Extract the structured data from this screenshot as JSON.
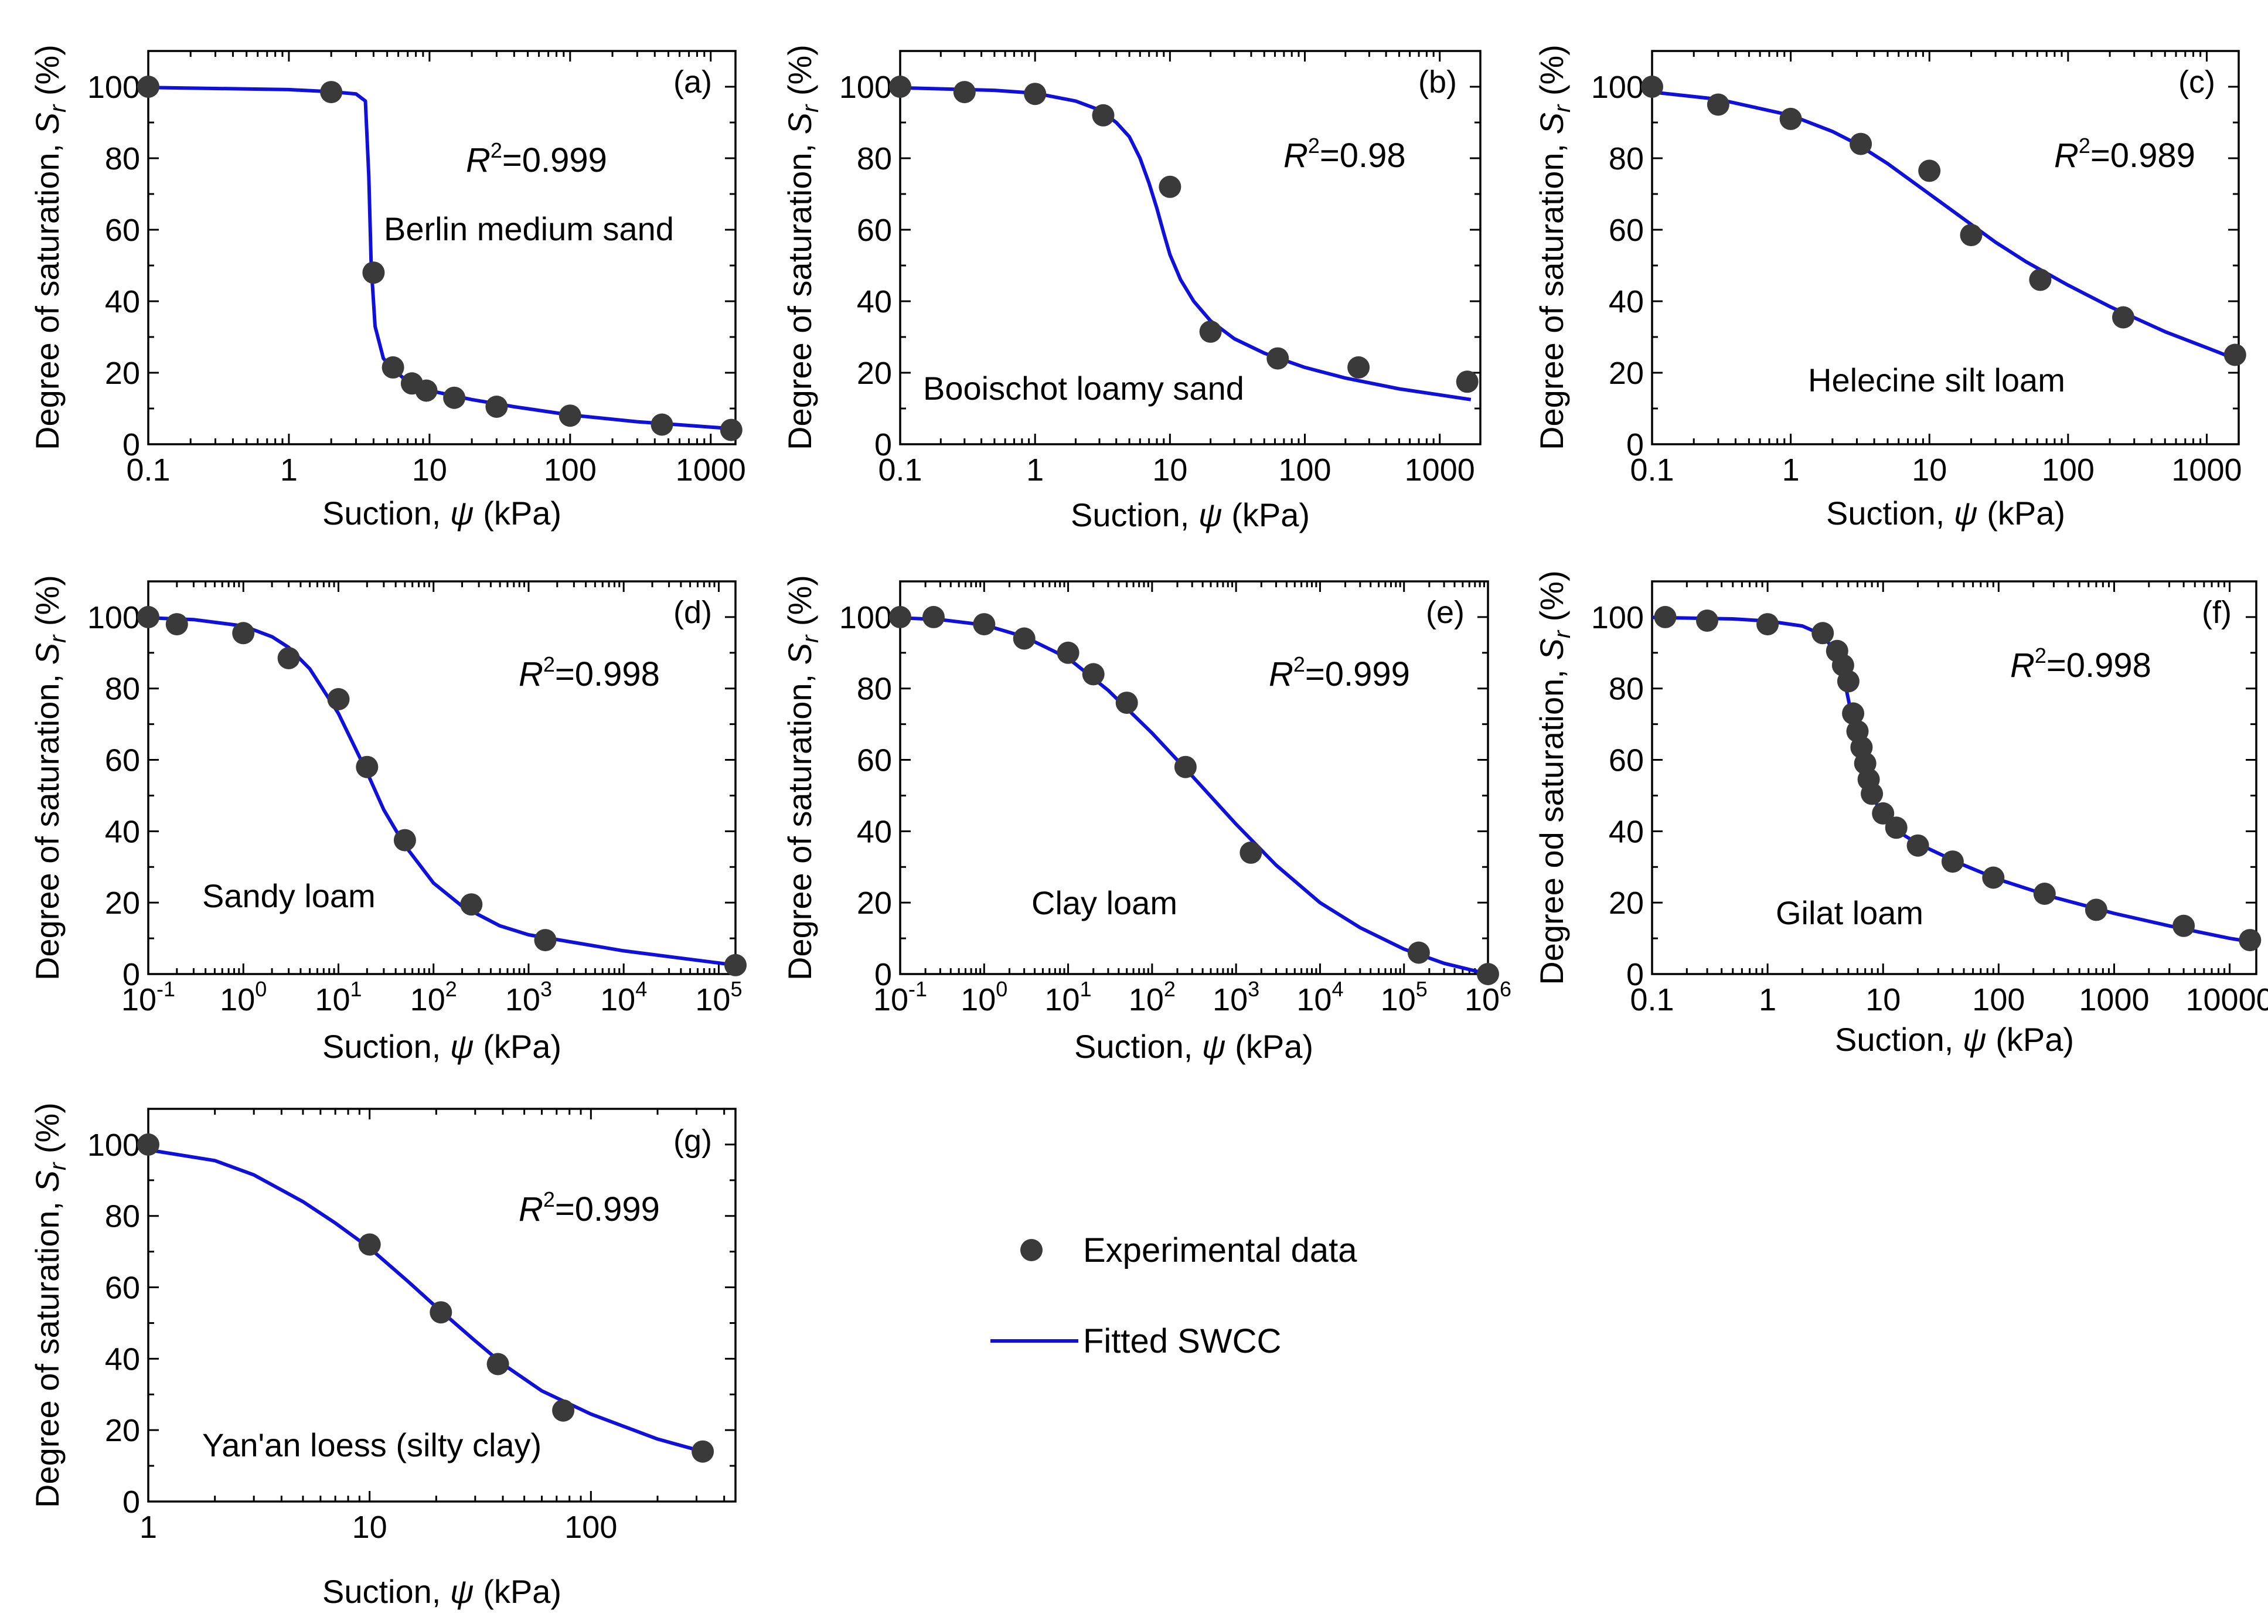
{
  "colors": {
    "point": "#3a3a3a",
    "curve": "#1010dd",
    "axis": "#000000"
  },
  "legend": {
    "experimental": "Experimental data",
    "fitted": "Fitted SWCC"
  },
  "chart_data": [
    {
      "id": "a",
      "type": "scatter+line",
      "panel_label": "(a)",
      "soil": "Berlin medium sand",
      "r2": "=0.999",
      "xlabel": "Suction, ψ (kPa)",
      "ylabel": "Degree of saturation, Sr (%)",
      "xscale": "log",
      "xlim": [
        0.1,
        1500
      ],
      "ylim": [
        0,
        110
      ],
      "xticks": [
        0.1,
        1,
        10,
        100,
        1000
      ],
      "xticklabels": [
        "0.1",
        "1",
        "10",
        "100",
        "1000"
      ],
      "yticks": [
        0,
        20,
        40,
        60,
        80,
        100
      ],
      "points": [
        [
          0.1,
          100
        ],
        [
          2,
          98.5
        ],
        [
          4,
          48
        ],
        [
          5.5,
          21.5
        ],
        [
          7.5,
          17
        ],
        [
          9.5,
          15
        ],
        [
          15,
          13
        ],
        [
          30,
          10.5
        ],
        [
          100,
          8
        ],
        [
          450,
          5.5
        ],
        [
          1400,
          4
        ]
      ],
      "curve": [
        [
          0.1,
          99.8
        ],
        [
          1,
          99.2
        ],
        [
          2,
          98.6
        ],
        [
          3,
          98
        ],
        [
          3.5,
          96
        ],
        [
          3.7,
          75
        ],
        [
          3.85,
          50
        ],
        [
          4.1,
          33
        ],
        [
          4.7,
          24
        ],
        [
          5.5,
          21
        ],
        [
          7,
          17.5
        ],
        [
          10,
          15
        ],
        [
          20,
          12.5
        ],
        [
          40,
          10.5
        ],
        [
          100,
          8.2
        ],
        [
          300,
          6.3
        ],
        [
          1000,
          4.8
        ],
        [
          1500,
          4.3
        ]
      ]
    },
    {
      "id": "b",
      "type": "scatter+line",
      "panel_label": "(b)",
      "soil": "Booischot loamy sand",
      "r2": "=0.98",
      "xlabel": "Suction, ψ (kPa)",
      "ylabel": "Degree of saturation, Sr (%)",
      "xscale": "log",
      "xlim": [
        0.1,
        2000
      ],
      "ylim": [
        0,
        110
      ],
      "xticks": [
        0.1,
        1,
        10,
        100,
        1000
      ],
      "xticklabels": [
        "0.1",
        "1",
        "10",
        "100",
        "1000"
      ],
      "yticks": [
        0,
        20,
        40,
        60,
        80,
        100
      ],
      "points": [
        [
          0.1,
          100
        ],
        [
          0.3,
          98.5
        ],
        [
          1,
          98
        ],
        [
          3.2,
          92
        ],
        [
          10,
          72
        ],
        [
          20,
          31.5
        ],
        [
          63,
          24
        ],
        [
          250,
          21.5
        ],
        [
          1600,
          17.5
        ]
      ],
      "curve": [
        [
          0.1,
          99.7
        ],
        [
          0.5,
          99
        ],
        [
          1,
          98.2
        ],
        [
          2,
          96
        ],
        [
          3,
          93.5
        ],
        [
          4,
          90
        ],
        [
          5,
          86
        ],
        [
          6,
          80
        ],
        [
          7,
          73
        ],
        [
          8,
          66
        ],
        [
          9,
          59
        ],
        [
          10,
          53
        ],
        [
          12,
          46
        ],
        [
          15,
          40
        ],
        [
          20,
          34.5
        ],
        [
          30,
          29.5
        ],
        [
          50,
          25.5
        ],
        [
          100,
          21.5
        ],
        [
          200,
          18.5
        ],
        [
          500,
          15.5
        ],
        [
          1000,
          13.8
        ],
        [
          1700,
          12.5
        ]
      ]
    },
    {
      "id": "c",
      "type": "scatter+line",
      "panel_label": "(c)",
      "soil": "Helecine silt loam",
      "r2": "=0.989",
      "xlabel": "Suction, ψ (kPa)",
      "ylabel": "Degree of saturation, Sr (%)",
      "xscale": "log",
      "xlim": [
        0.1,
        1700
      ],
      "ylim": [
        0,
        110
      ],
      "xticks": [
        0.1,
        1,
        10,
        100,
        1000
      ],
      "xticklabels": [
        "0.1",
        "1",
        "10",
        "100",
        "1000"
      ],
      "yticks": [
        0,
        20,
        40,
        60,
        80,
        100
      ],
      "points": [
        [
          0.1,
          100
        ],
        [
          0.3,
          95
        ],
        [
          1,
          91
        ],
        [
          3.2,
          84
        ],
        [
          10,
          76.5
        ],
        [
          20,
          58.5
        ],
        [
          63,
          46
        ],
        [
          250,
          35.5
        ],
        [
          1600,
          25
        ]
      ],
      "curve": [
        [
          0.1,
          98.5
        ],
        [
          0.3,
          96.5
        ],
        [
          1,
          92
        ],
        [
          2,
          87.5
        ],
        [
          3,
          84
        ],
        [
          5,
          78.5
        ],
        [
          10,
          70
        ],
        [
          20,
          61.5
        ],
        [
          30,
          56.5
        ],
        [
          50,
          51
        ],
        [
          100,
          44.5
        ],
        [
          200,
          38.5
        ],
        [
          500,
          31.5
        ],
        [
          1000,
          27
        ],
        [
          1700,
          23.5
        ]
      ]
    },
    {
      "id": "d",
      "type": "scatter+line",
      "panel_label": "(d)",
      "soil": "Sandy loam",
      "r2": "=0.998",
      "xlabel": "Suction, ψ (kPa)",
      "ylabel": "Degree of saturation, Sr (%)",
      "xscale": "log",
      "xlim": [
        0.1,
        150000
      ],
      "ylim": [
        0,
        110
      ],
      "xticks": [
        0.1,
        1,
        10,
        100,
        1000,
        10000,
        100000
      ],
      "xtick_base": "10",
      "xtick_exponents": [
        "-1",
        "0",
        "1",
        "2",
        "3",
        "4",
        "5"
      ],
      "yticks": [
        0,
        20,
        40,
        60,
        80,
        100
      ],
      "points": [
        [
          0.1,
          100
        ],
        [
          0.2,
          98
        ],
        [
          1,
          95.5
        ],
        [
          3,
          88.5
        ],
        [
          10,
          77
        ],
        [
          20,
          58
        ],
        [
          50,
          37.5
        ],
        [
          250,
          19.5
        ],
        [
          1500,
          9.5
        ],
        [
          150000,
          2.5
        ]
      ],
      "curve": [
        [
          0.1,
          99.8
        ],
        [
          0.3,
          99.3
        ],
        [
          1,
          97.5
        ],
        [
          2,
          94.5
        ],
        [
          3,
          91.5
        ],
        [
          5,
          85.5
        ],
        [
          10,
          73
        ],
        [
          20,
          56.5
        ],
        [
          30,
          46
        ],
        [
          50,
          36
        ],
        [
          100,
          25.5
        ],
        [
          200,
          19
        ],
        [
          500,
          13.5
        ],
        [
          1000,
          11
        ],
        [
          10000,
          6.5
        ],
        [
          150000,
          2.5
        ]
      ]
    },
    {
      "id": "e",
      "type": "scatter+line",
      "panel_label": "(e)",
      "soil": "Clay loam",
      "r2": "=0.999",
      "xlabel": "Suction, ψ (kPa)",
      "ylabel": "Degree of saturation, Sr (%)",
      "xscale": "log",
      "xlim": [
        0.1,
        1000000
      ],
      "ylim": [
        0,
        110
      ],
      "xticks": [
        0.1,
        1,
        10,
        100,
        1000,
        10000,
        100000,
        1000000
      ],
      "xtick_base": "10",
      "xtick_exponents": [
        "-1",
        "0",
        "1",
        "2",
        "3",
        "4",
        "5",
        "6"
      ],
      "yticks": [
        0,
        20,
        40,
        60,
        80,
        100
      ],
      "points": [
        [
          0.1,
          100
        ],
        [
          0.25,
          100
        ],
        [
          1,
          98
        ],
        [
          3,
          94
        ],
        [
          10,
          90
        ],
        [
          20,
          84
        ],
        [
          50,
          76
        ],
        [
          250,
          58
        ],
        [
          1500,
          34
        ],
        [
          150000,
          6
        ],
        [
          1000000,
          0
        ]
      ],
      "curve": [
        [
          0.1,
          99.8
        ],
        [
          0.3,
          99.3
        ],
        [
          1,
          97.8
        ],
        [
          3,
          94.5
        ],
        [
          10,
          88.5
        ],
        [
          30,
          79.5
        ],
        [
          100,
          67.5
        ],
        [
          300,
          55.5
        ],
        [
          1000,
          42
        ],
        [
          3000,
          30.5
        ],
        [
          10000,
          20
        ],
        [
          30000,
          13
        ],
        [
          100000,
          7
        ],
        [
          300000,
          3
        ],
        [
          1000000,
          0
        ]
      ]
    },
    {
      "id": "f",
      "type": "scatter+line",
      "panel_label": "(f)",
      "soil": "Gilat loam",
      "r2": "=0.998",
      "xlabel": "Suction, ψ (kPa)",
      "ylabel": "Degree od saturation, Sr (%)",
      "xscale": "log",
      "xlim": [
        0.1,
        17000
      ],
      "ylim": [
        0,
        110
      ],
      "xticks": [
        0.1,
        1,
        10,
        100,
        1000,
        10000
      ],
      "xticklabels": [
        "0.1",
        "1",
        "10",
        "100",
        "1000",
        "10000"
      ],
      "yticks": [
        0,
        20,
        40,
        60,
        80,
        100
      ],
      "points": [
        [
          0.13,
          100
        ],
        [
          0.3,
          99
        ],
        [
          1,
          98
        ],
        [
          3,
          95.5
        ],
        [
          4,
          90.5
        ],
        [
          4.5,
          86.5
        ],
        [
          5,
          82
        ],
        [
          5.5,
          73
        ],
        [
          6,
          68
        ],
        [
          6.5,
          63.5
        ],
        [
          7,
          59
        ],
        [
          7.5,
          54.5
        ],
        [
          8,
          50.5
        ],
        [
          10,
          45
        ],
        [
          13,
          41
        ],
        [
          20,
          36
        ],
        [
          40,
          31.5
        ],
        [
          90,
          27
        ],
        [
          250,
          22.5
        ],
        [
          700,
          18
        ],
        [
          4000,
          13.5
        ],
        [
          15000,
          9.5
        ]
      ],
      "curve": [
        [
          0.1,
          99.9
        ],
        [
          0.5,
          99.5
        ],
        [
          1,
          98.9
        ],
        [
          2,
          97.5
        ],
        [
          3,
          95
        ],
        [
          4,
          89.5
        ],
        [
          4.5,
          84
        ],
        [
          5,
          77
        ],
        [
          5.5,
          70
        ],
        [
          6,
          63.5
        ],
        [
          7,
          55
        ],
        [
          8,
          50
        ],
        [
          10,
          44.5
        ],
        [
          15,
          39
        ],
        [
          20,
          36.5
        ],
        [
          50,
          30.5
        ],
        [
          100,
          26.5
        ],
        [
          300,
          21.5
        ],
        [
          1000,
          17
        ],
        [
          3000,
          13.5
        ],
        [
          10000,
          10
        ],
        [
          17000,
          8.8
        ]
      ]
    },
    {
      "id": "g",
      "type": "scatter+line",
      "panel_label": "(g)",
      "soil": "Yan'an loess (silty clay)",
      "r2": "=0.999",
      "xlabel": "Suction, ψ (kPa)",
      "ylabel": "Degree of saturation, Sr (%)",
      "xscale": "log",
      "xlim": [
        1,
        450
      ],
      "ylim": [
        0,
        110
      ],
      "xticks": [
        1,
        10,
        100
      ],
      "xticklabels": [
        "1",
        "10",
        "100"
      ],
      "yticks": [
        0,
        20,
        40,
        60,
        80,
        100
      ],
      "points": [
        [
          1,
          100
        ],
        [
          10,
          72
        ],
        [
          21,
          53
        ],
        [
          38,
          38.5
        ],
        [
          75,
          25.5
        ],
        [
          320,
          14
        ]
      ],
      "curve": [
        [
          1,
          98.5
        ],
        [
          2,
          95.5
        ],
        [
          3,
          91.5
        ],
        [
          5,
          84
        ],
        [
          7,
          78
        ],
        [
          10,
          71
        ],
        [
          15,
          61.5
        ],
        [
          20,
          54.5
        ],
        [
          30,
          45
        ],
        [
          40,
          38.5
        ],
        [
          60,
          31
        ],
        [
          100,
          24.5
        ],
        [
          200,
          17.5
        ],
        [
          320,
          14
        ]
      ]
    }
  ]
}
